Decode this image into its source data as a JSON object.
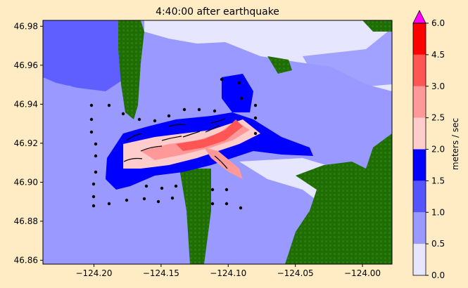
{
  "chart_data": {
    "type": "heatmap",
    "title": "4:40:00 after earthquake",
    "xlim": [
      -124.238,
      -123.978
    ],
    "ylim": [
      46.858,
      46.983
    ],
    "x_ticks": [
      -124.2,
      -124.15,
      -124.1,
      -124.05,
      -124.0
    ],
    "x_tick_labels": [
      "−124.20",
      "−124.15",
      "−124.10",
      "−124.05",
      "−124.00"
    ],
    "y_ticks": [
      46.86,
      46.88,
      46.9,
      46.92,
      46.94,
      46.96,
      46.98
    ],
    "y_tick_labels": [
      "46.86",
      "46.88",
      "46.90",
      "46.92",
      "46.94",
      "46.96",
      "46.98"
    ],
    "land_color": "#1f6e05",
    "colorbar": {
      "label": "meters / sec",
      "extend": "max",
      "extend_color": "#ff00ff",
      "levels": [
        0.0,
        0.5,
        1.0,
        1.5,
        2.0,
        2.5,
        3.0,
        4.5,
        6.0
      ],
      "level_labels": [
        "0.0",
        "0.5",
        "1.0",
        "1.5",
        "2.0",
        "2.5",
        "3.0",
        "4.5",
        "6.0"
      ],
      "colors": [
        "#e6e6ff",
        "#9999ff",
        "#5555ff",
        "#0000ff",
        "#ffcccc",
        "#ff9999",
        "#ff5555",
        "#ff0000"
      ]
    }
  }
}
